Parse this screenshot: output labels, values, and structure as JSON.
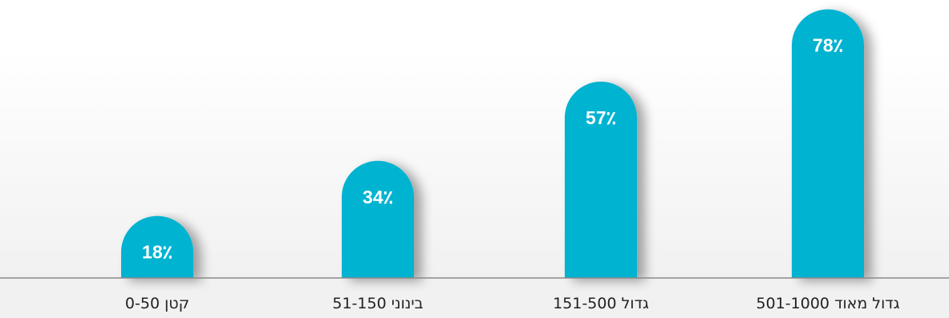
{
  "colors": {
    "bar": "#00b3d1",
    "axis": "#8a8a8a",
    "label_text": "#ffffff",
    "category_text": "#222222"
  },
  "chart_data": {
    "type": "bar",
    "title": "",
    "xlabel": "",
    "ylabel": "",
    "ylim": [
      0,
      100
    ],
    "grid": false,
    "legend": "none",
    "categories": [
      "קטן 0-50",
      "בינוני 51-150",
      "גדול 151-500",
      "גדול מאוד 501-1000"
    ],
    "values": [
      18,
      34,
      57,
      78
    ],
    "value_labels": [
      "18٪",
      "34٪",
      "57٪",
      "78٪"
    ]
  }
}
